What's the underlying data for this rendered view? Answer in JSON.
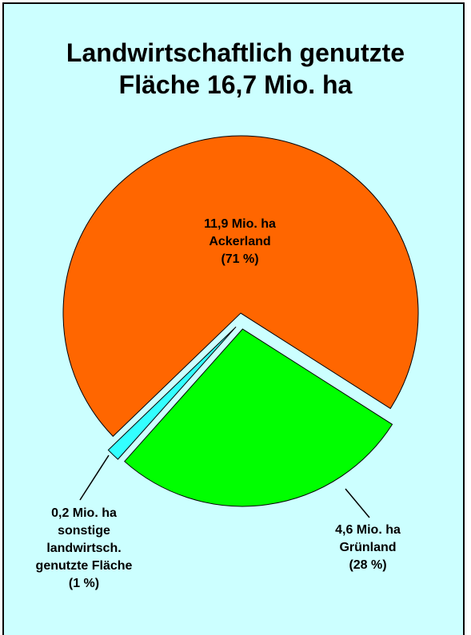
{
  "chart_data": {
    "type": "pie",
    "title": "Landwirtschaftlich genutzte Fläche 16,7 Mio. ha",
    "categories": [
      "Ackerland",
      "Grünland",
      "sonstige landwirtsch. genutzte Fläche"
    ],
    "values": [
      11.9,
      4.6,
      0.2
    ],
    "value_labels": [
      "11,9 Mio. ha",
      "4,6 Mio. ha",
      "0,2 Mio. ha"
    ],
    "share_labels": [
      "(71 %)",
      "(28 %)",
      "(1 %)"
    ],
    "colors": [
      "#ff6600",
      "#00ff00",
      "#33ffff"
    ]
  }
}
